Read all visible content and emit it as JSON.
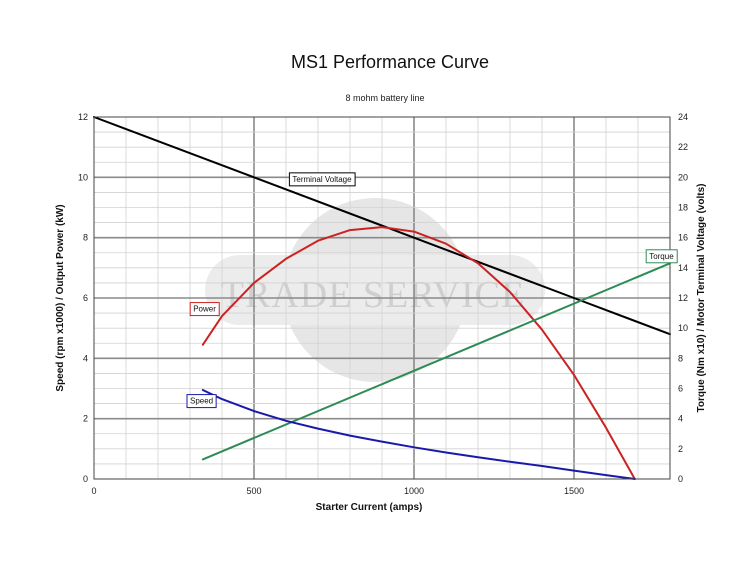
{
  "chart_data": {
    "type": "line",
    "title": "MS1 Performance Curve",
    "subtitle": "8 mohm battery line",
    "xlabel": "Starter Current (amps)",
    "ylabel_left": "Speed (rpm x1000) / Output Power (kW)",
    "ylabel_right": "Torque (Nm x10) / Motor Terminal Voltage (volts)",
    "xlim": [
      0,
      1800
    ],
    "ylim_left": [
      0,
      12
    ],
    "ylim_right": [
      0,
      24
    ],
    "x_ticks": [
      0,
      500,
      1000,
      1500
    ],
    "y_ticks_left": [
      0,
      2,
      4,
      6,
      8,
      10,
      12
    ],
    "y_ticks_right": [
      0,
      2,
      4,
      6,
      8,
      10,
      12,
      14,
      16,
      18,
      20,
      22,
      24
    ],
    "grid": true,
    "watermark": "TRADE SERVICE",
    "series": [
      {
        "name": "Terminal Voltage",
        "axis": "right",
        "color": "#000000",
        "x": [
          0,
          500,
          1000,
          1500,
          1800
        ],
        "y": [
          24,
          20,
          16,
          12,
          9.6
        ],
        "label_at": [
          620,
          19.7
        ]
      },
      {
        "name": "Power",
        "axis": "left",
        "color": "#cc2222",
        "x": [
          340,
          400,
          500,
          600,
          700,
          800,
          900,
          1000,
          1100,
          1200,
          1300,
          1400,
          1500,
          1600,
          1690
        ],
        "y": [
          4.45,
          5.4,
          6.5,
          7.3,
          7.9,
          8.25,
          8.35,
          8.2,
          7.8,
          7.15,
          6.2,
          4.95,
          3.45,
          1.7,
          0
        ],
        "label_at": [
          310,
          5.55
        ]
      },
      {
        "name": "Torque",
        "axis": "right",
        "color": "#2e8b57",
        "x": [
          340,
          1800
        ],
        "y": [
          1.3,
          14.3
        ],
        "label_at": [
          1735,
          14.6
        ]
      },
      {
        "name": "Speed",
        "axis": "left",
        "color": "#1a1aaa",
        "x": [
          340,
          400,
          500,
          600,
          700,
          800,
          900,
          1000,
          1100,
          1200,
          1300,
          1400,
          1500,
          1600,
          1690
        ],
        "y": [
          2.95,
          2.65,
          2.25,
          1.93,
          1.67,
          1.44,
          1.24,
          1.05,
          0.88,
          0.72,
          0.57,
          0.43,
          0.28,
          0.13,
          0
        ],
        "label_at": [
          300,
          2.5
        ]
      }
    ]
  }
}
